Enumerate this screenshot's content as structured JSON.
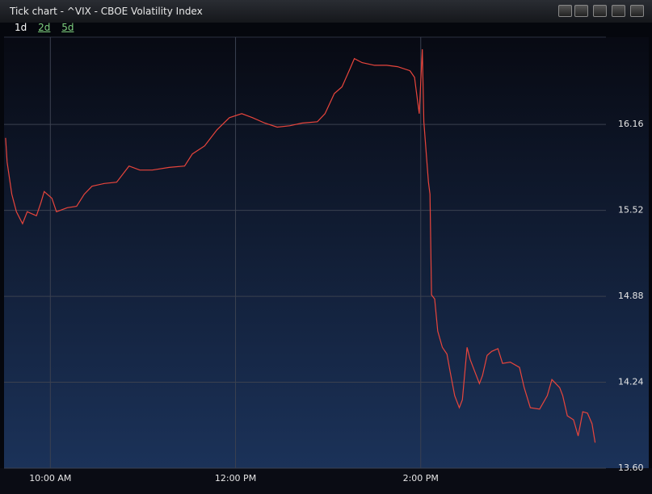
{
  "window": {
    "title": "Tick chart - ^VIX - CBOE Volatility Index",
    "tabs": [
      "1d",
      "2d",
      "5d"
    ]
  },
  "chart_data": {
    "type": "line",
    "color": "#e8453c",
    "grid": true,
    "x": [
      571,
      572,
      575,
      578,
      582,
      585,
      591,
      594,
      596,
      601,
      604,
      611,
      617,
      622,
      627,
      635,
      643,
      651,
      658,
      666,
      677,
      687,
      692,
      700,
      708,
      716,
      724,
      731,
      739,
      747,
      755,
      763,
      773,
      778,
      784,
      789,
      794,
      797,
      802,
      810,
      818,
      825,
      833,
      836,
      837,
      839,
      841,
      842,
      844,
      845,
      846,
      847,
      849,
      851,
      854,
      857,
      859,
      862,
      865,
      867,
      870,
      872,
      875,
      878,
      880,
      883,
      886,
      890,
      893,
      898,
      904,
      907,
      911,
      917,
      922,
      925,
      930,
      932,
      935,
      939,
      942,
      945,
      948,
      951,
      953
    ],
    "values": [
      16.06,
      15.88,
      15.64,
      15.51,
      15.42,
      15.51,
      15.48,
      15.58,
      15.66,
      15.61,
      15.51,
      15.54,
      15.55,
      15.64,
      15.7,
      15.72,
      15.73,
      15.85,
      15.82,
      15.82,
      15.84,
      15.85,
      15.94,
      16.0,
      16.12,
      16.21,
      16.24,
      16.21,
      16.17,
      16.14,
      16.15,
      16.17,
      16.18,
      16.24,
      16.39,
      16.44,
      16.57,
      16.65,
      16.62,
      16.6,
      16.6,
      16.59,
      16.56,
      16.51,
      16.42,
      16.24,
      16.72,
      16.18,
      15.88,
      15.73,
      15.64,
      14.89,
      14.86,
      14.62,
      14.5,
      14.45,
      14.32,
      14.14,
      14.05,
      14.11,
      14.5,
      14.41,
      14.32,
      14.23,
      14.29,
      14.44,
      14.47,
      14.49,
      14.38,
      14.39,
      14.35,
      14.2,
      14.05,
      14.04,
      14.14,
      14.26,
      14.2,
      14.14,
      13.99,
      13.96,
      13.84,
      14.02,
      14.01,
      13.93,
      13.79
    ],
    "xlim": [
      570,
      960
    ],
    "xticks": [
      {
        "value": 600,
        "label": "10:00 AM"
      },
      {
        "value": 720,
        "label": "12:00 PM"
      },
      {
        "value": 840,
        "label": "2:00 PM"
      }
    ],
    "ylim": [
      13.6,
      16.81
    ],
    "yticks": [
      16.16,
      15.52,
      14.88,
      14.24,
      {
        "value": 13.6,
        "label": "13.60"
      }
    ]
  }
}
